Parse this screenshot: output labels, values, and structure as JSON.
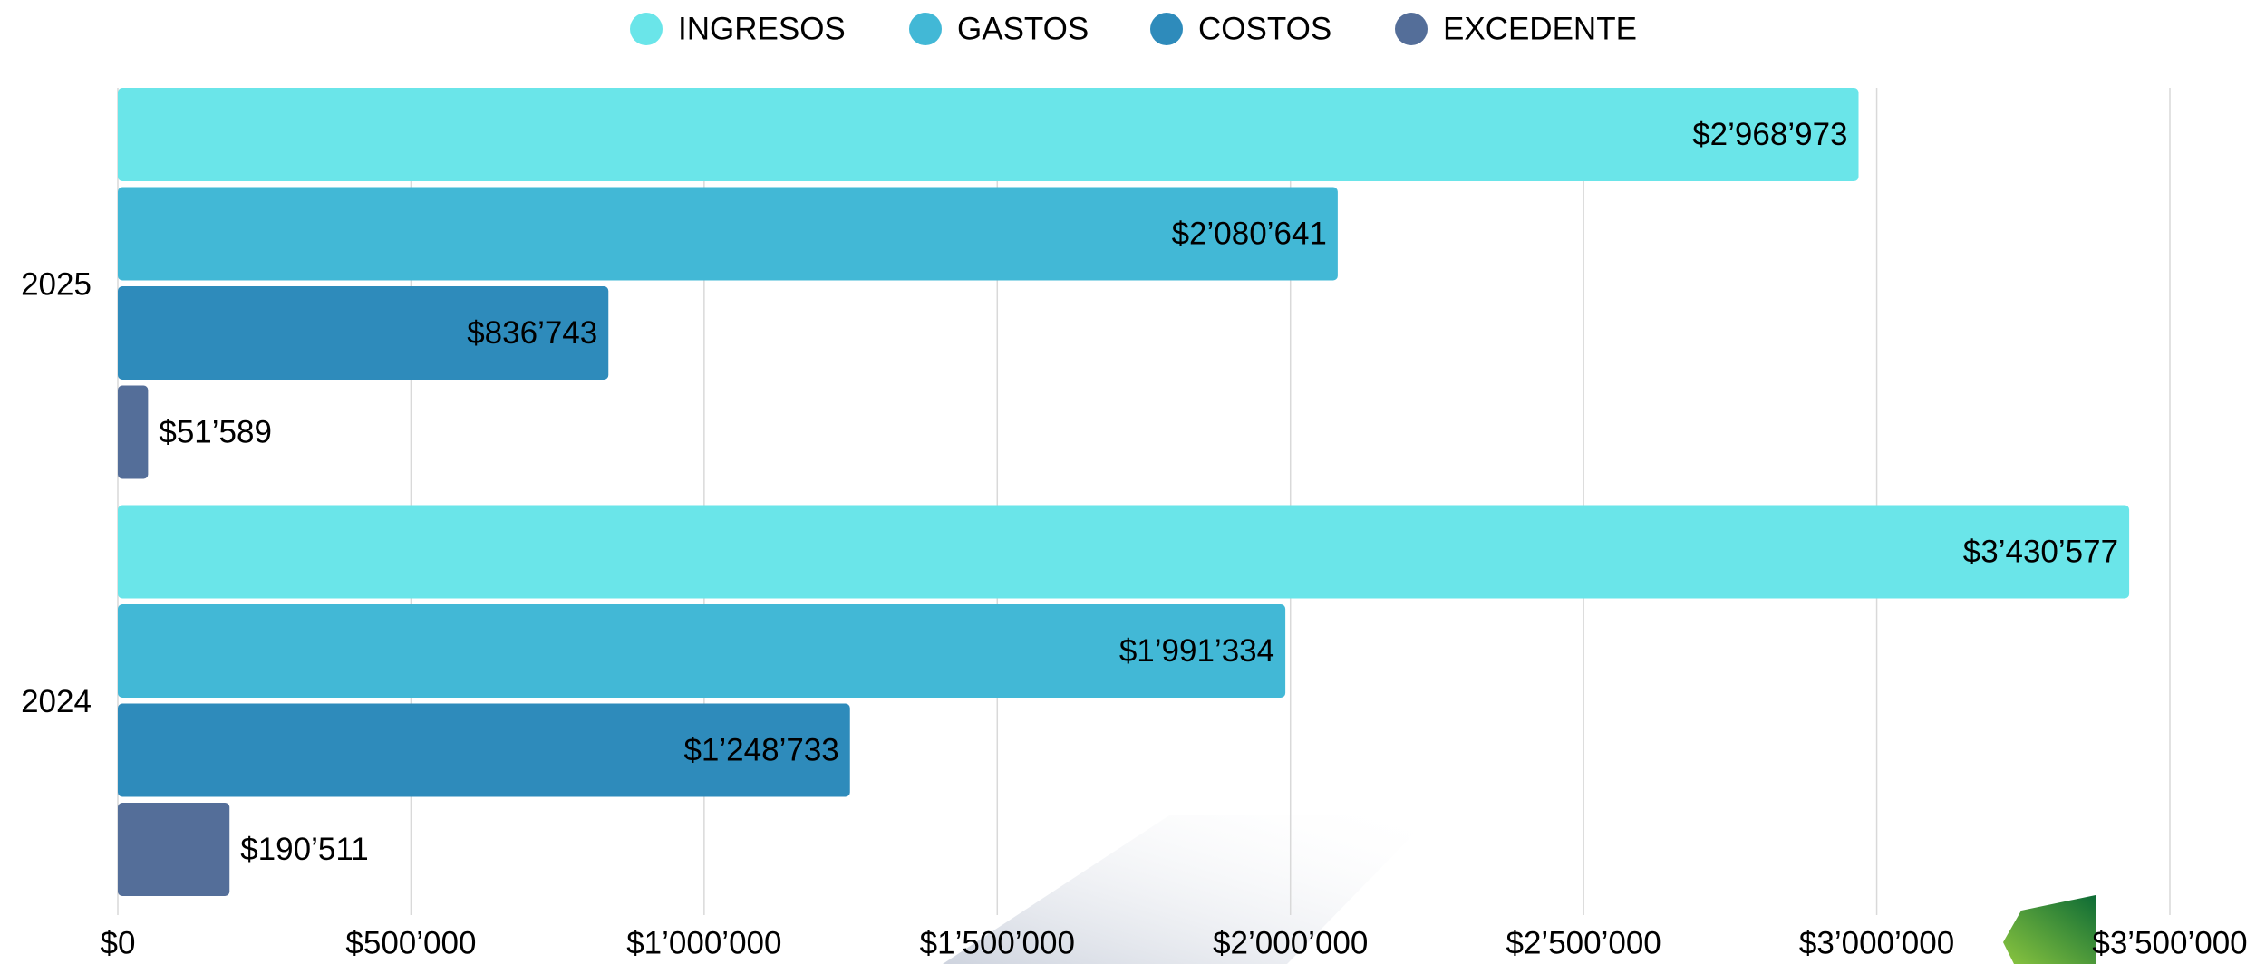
{
  "chart_data": {
    "type": "hbar",
    "categories": [
      "2025",
      "2024"
    ],
    "series": [
      {
        "name": "INGRESOS",
        "color": "#6ae5e9",
        "label_color": "#000000",
        "values": [
          2968973,
          3430577
        ],
        "value_labels": [
          "$2’968’973",
          "$3’430’577"
        ]
      },
      {
        "name": "GASTOS",
        "color": "#42b8d6",
        "label_color": "#000000",
        "values": [
          2080641,
          1991334
        ],
        "value_labels": [
          "$2’080’641",
          "$1’991’334"
        ]
      },
      {
        "name": "COSTOS",
        "color": "#2e8bbb",
        "label_color": "#ffffff",
        "values": [
          836743,
          1248733
        ],
        "value_labels": [
          "$836’743",
          "$1’248’733"
        ]
      },
      {
        "name": "EXCEDENTE",
        "color": "#546e99",
        "label_color": "#000000",
        "values": [
          51589,
          190511
        ],
        "value_labels": [
          "$51’589",
          "$190’511"
        ]
      }
    ],
    "xlim": [
      0,
      3500000
    ],
    "xticks": [
      {
        "value": 0,
        "label": "$0"
      },
      {
        "value": 500000,
        "label": "$500’000"
      },
      {
        "value": 1000000,
        "label": "$1’000’000"
      },
      {
        "value": 1500000,
        "label": "$1’500’000"
      },
      {
        "value": 2000000,
        "label": "$2’000’000"
      },
      {
        "value": 2500000,
        "label": "$2’500’000"
      },
      {
        "value": 3000000,
        "label": "$3’000’000"
      },
      {
        "value": 3500000,
        "label": "$3’500’000"
      }
    ],
    "grid": true,
    "legend": "top"
  }
}
